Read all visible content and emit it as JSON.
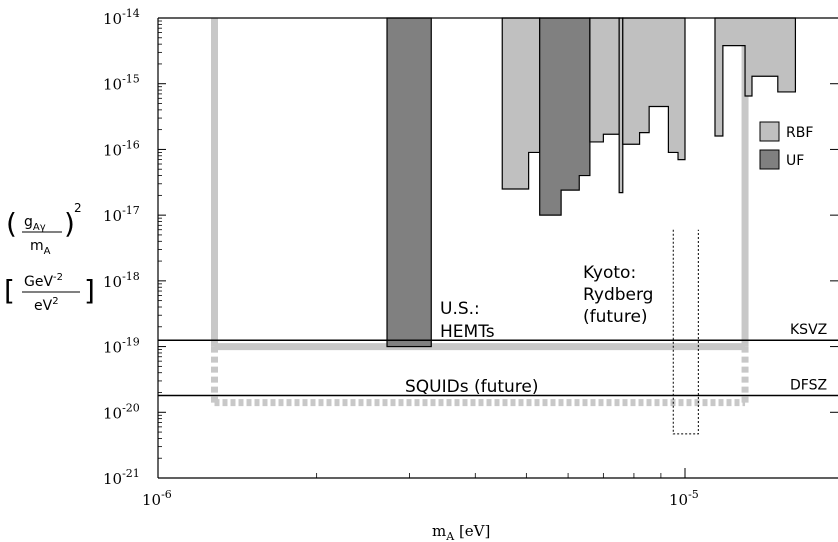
{
  "chart_data": {
    "type": "area",
    "title": "",
    "xlabel": "m",
    "xlabel_sub": "A",
    "xlabel_unit": "[eV]",
    "ylabel_frac_num": "g",
    "ylabel_frac_num_sub": "Aγ",
    "ylabel_frac_den": "m",
    "ylabel_frac_den_sub": "A",
    "ylabel_power": "2",
    "ylabel_unit_num": "GeV",
    "ylabel_unit_num_sup": "-2",
    "ylabel_unit_den": "eV",
    "ylabel_unit_den_sup": "2",
    "x_scale": "log",
    "y_scale": "log",
    "xlim": [
      1e-06,
      1.9e-05
    ],
    "ylim": [
      1e-21,
      1e-14
    ],
    "x_ticks": [
      {
        "base": "10",
        "exp": "-6",
        "value": 1e-06
      },
      {
        "base": "10",
        "exp": "-5",
        "value": 1e-05
      }
    ],
    "y_ticks": [
      {
        "base": "10",
        "exp": "-14",
        "value": 1e-14
      },
      {
        "base": "10",
        "exp": "-15",
        "value": 1e-15
      },
      {
        "base": "10",
        "exp": "-16",
        "value": 1e-16
      },
      {
        "base": "10",
        "exp": "-17",
        "value": 1e-17
      },
      {
        "base": "10",
        "exp": "-18",
        "value": 1e-18
      },
      {
        "base": "10",
        "exp": "-19",
        "value": 1e-19
      },
      {
        "base": "10",
        "exp": "-20",
        "value": 1e-20
      },
      {
        "base": "10",
        "exp": "-21",
        "value": 1e-21
      }
    ],
    "legend_position": "right",
    "legend": [
      {
        "name": "RBF",
        "color": "#c0c0c0"
      },
      {
        "name": "UF",
        "color": "#808080"
      }
    ],
    "reference_lines": [
      {
        "name": "KSVZ",
        "y": 1.25e-19
      },
      {
        "name": "DFSZ",
        "y": 1.8e-20
      }
    ],
    "exclusion_regions": [
      {
        "name": "UF",
        "color": "#808080",
        "x_range": [
          2.72e-06,
          3.3e-06
        ],
        "y_range": [
          1e-19,
          1e-14
        ]
      },
      {
        "name": "RBF",
        "color": "#c0c0c0",
        "steps": [
          [
            4.5e-06,
            2.5e-17
          ],
          [
            5.05e-06,
            9e-17
          ],
          [
            5.3e-06,
            1e-14
          ]
        ]
      },
      {
        "name": "UF",
        "color": "#808080",
        "steps": [
          [
            5.3e-06,
            1e-17
          ],
          [
            5.82e-06,
            2.4e-17
          ],
          [
            6.3e-06,
            4e-17
          ],
          [
            6.6e-06,
            1e-14
          ]
        ]
      },
      {
        "name": "RBF",
        "color": "#c0c0c0",
        "steps": [
          [
            6.6e-06,
            1.3e-16
          ],
          [
            7e-06,
            1.7e-16
          ],
          [
            7.5e-06,
            1e-14
          ]
        ]
      },
      {
        "name": "RBF",
        "color": "#c0c0c0",
        "steps": [
          [
            7.5e-06,
            2.2e-17
          ],
          [
            7.62e-06,
            1e-14
          ]
        ]
      },
      {
        "name": "RBF",
        "color": "#c0c0c0",
        "steps": [
          [
            7.62e-06,
            1.2e-16
          ],
          [
            8.2e-06,
            1.8e-16
          ],
          [
            8.55e-06,
            4.5e-16
          ],
          [
            9.3e-06,
            9e-17
          ],
          [
            9.7e-06,
            7e-17
          ],
          [
            1e-05,
            1e-14
          ]
        ]
      },
      {
        "name": "RBF",
        "color": "#c0c0c0",
        "steps": [
          [
            1.14e-05,
            1.6e-16
          ],
          [
            1.18e-05,
            3.8e-15
          ],
          [
            1.3e-05,
            6.5e-16
          ],
          [
            1.34e-05,
            1.3e-15
          ],
          [
            1.5e-05,
            7.5e-16
          ],
          [
            1.62e-05,
            1e-14
          ]
        ]
      }
    ],
    "proposed_regions": [
      {
        "label_line1": "U.S.:",
        "label_line2": "HEMTs",
        "x_range": [
          1.28e-06,
          1.3e-05
        ],
        "y_lower": 1e-19,
        "y_upper": 1e-14,
        "style": "solid light gray"
      },
      {
        "label_line1": "SQUIDs (future)",
        "x_range": [
          1.28e-06,
          1.3e-05
        ],
        "y_lower": 1.4e-20,
        "y_upper": 1e-19,
        "style": "dashed light gray"
      },
      {
        "label_line1": "Kyoto:",
        "label_line2": "Rydberg",
        "label_line3": "(future)",
        "x_range": [
          9.5e-06,
          1.06e-05
        ],
        "y_lower": 4.7e-21,
        "y_upper": 6e-18,
        "style": "dotted outline"
      }
    ]
  }
}
